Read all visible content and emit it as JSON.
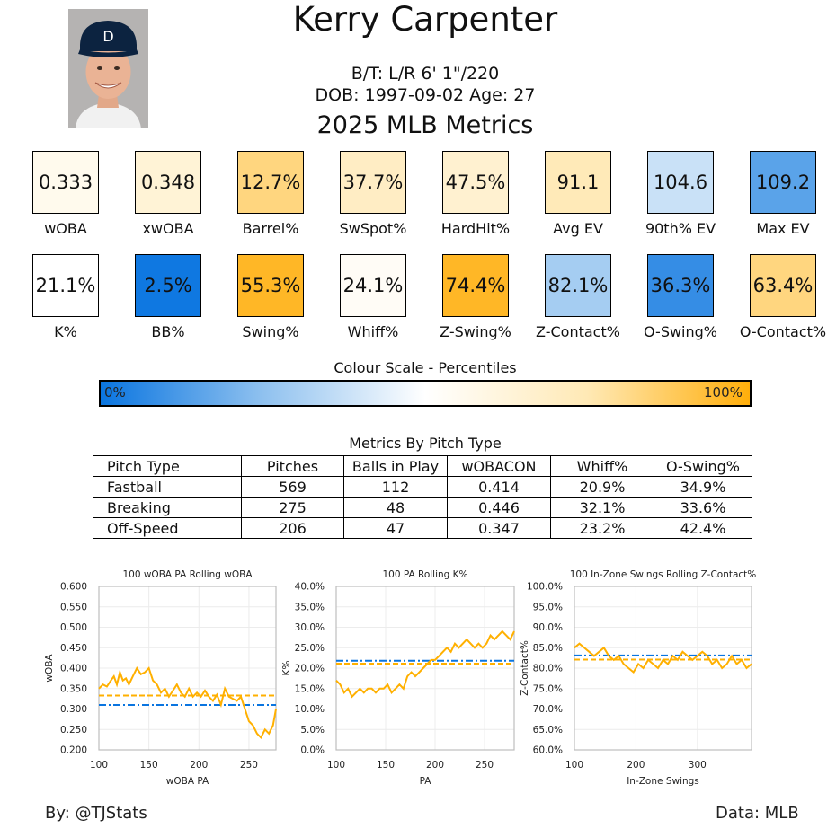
{
  "player": {
    "name": "Kerry Carpenter",
    "bt_line": "B/T: L/R    6' 1\"/220",
    "dob_line": "DOB: 1997-09-02    Age: 27",
    "season_title": "2025 MLB Metrics"
  },
  "tiles": [
    {
      "value": "0.333",
      "label": "wOBA",
      "pct": 0.56
    },
    {
      "value": "0.348",
      "label": "xwOBA",
      "pct": 0.64
    },
    {
      "value": "12.7%",
      "label": "Barrel%",
      "pct": 0.83
    },
    {
      "value": "37.7%",
      "label": "SwSpot%",
      "pct": 0.7
    },
    {
      "value": "47.5%",
      "label": "HardHit%",
      "pct": 0.66
    },
    {
      "value": "91.1",
      "label": "Avg EV",
      "pct": 0.74
    },
    {
      "value": "104.6",
      "label": "90th% EV",
      "pct": 0.38
    },
    {
      "value": "109.2",
      "label": "Max EV",
      "pct": 0.15
    },
    {
      "value": "21.1%",
      "label": "K%",
      "pct": 0.5
    },
    {
      "value": "2.5%",
      "label": "BB%",
      "pct": 0.01
    },
    {
      "value": "55.3%",
      "label": "Swing%",
      "pct": 0.96
    },
    {
      "value": "24.1%",
      "label": "Whiff%",
      "pct": 0.53
    },
    {
      "value": "74.4%",
      "label": "Z-Swing%",
      "pct": 0.96
    },
    {
      "value": "82.1%",
      "label": "Z-Contact%",
      "pct": 0.3
    },
    {
      "value": "36.3%",
      "label": "O-Swing%",
      "pct": 0.08
    },
    {
      "value": "63.4%",
      "label": "O-Contact%",
      "pct": 0.83
    }
  ],
  "colour_scale": {
    "title": "Colour Scale - Percentiles",
    "low": "0%",
    "high": "100%",
    "colors": [
      "#0a75e0",
      "#8fc1ef",
      "#ffffff",
      "#ffe9b5",
      "#ffae0b"
    ]
  },
  "pitch_table": {
    "title": "Metrics By Pitch Type",
    "headers": [
      "Pitch Type",
      "Pitches",
      "Balls in Play",
      "wOBACON",
      "Whiff%",
      "O-Swing%"
    ],
    "rows": [
      [
        "Fastball",
        "569",
        "112",
        "0.414",
        "20.9%",
        "34.9%"
      ],
      [
        "Breaking",
        "275",
        "48",
        "0.446",
        "32.1%",
        "33.6%"
      ],
      [
        "Off-Speed",
        "206",
        "47",
        "0.347",
        "23.2%",
        "42.4%"
      ]
    ]
  },
  "chart_data": [
    {
      "type": "line",
      "title": "100 wOBA PA Rolling wOBA",
      "xlabel": "wOBA PA",
      "ylabel": "wOBA",
      "xlim": [
        100,
        277
      ],
      "ylim": [
        0.2,
        0.6
      ],
      "xticks": [
        100,
        150,
        200,
        250
      ],
      "xtick_labels": [
        "100",
        "150",
        "200",
        "250"
      ],
      "yticks": [
        0.2,
        0.25,
        0.3,
        0.35,
        0.4,
        0.45,
        0.5,
        0.55,
        0.6
      ],
      "ytick_labels": [
        "0.200",
        "0.250",
        "0.300",
        "0.350",
        "0.400",
        "0.450",
        "0.500",
        "0.550",
        "0.600"
      ],
      "series": [
        {
          "color": "#ffb000",
          "x": [
            100,
            104,
            108,
            112,
            115,
            118,
            121,
            124,
            127,
            130,
            134,
            138,
            142,
            146,
            150,
            154,
            158,
            162,
            166,
            170,
            174,
            178,
            182,
            186,
            190,
            194,
            198,
            202,
            206,
            210,
            214,
            218,
            222,
            226,
            230,
            234,
            238,
            242,
            246,
            250,
            254,
            258,
            262,
            266,
            270,
            274,
            277
          ],
          "y": [
            0.35,
            0.36,
            0.355,
            0.37,
            0.38,
            0.36,
            0.39,
            0.37,
            0.375,
            0.36,
            0.38,
            0.4,
            0.385,
            0.39,
            0.4,
            0.37,
            0.36,
            0.34,
            0.35,
            0.33,
            0.345,
            0.36,
            0.34,
            0.33,
            0.35,
            0.33,
            0.34,
            0.33,
            0.345,
            0.33,
            0.32,
            0.335,
            0.31,
            0.35,
            0.33,
            0.325,
            0.32,
            0.33,
            0.3,
            0.27,
            0.26,
            0.24,
            0.23,
            0.25,
            0.24,
            0.26,
            0.3
          ]
        }
      ],
      "reference_lines": [
        {
          "value": 0.333,
          "color": "#ffb000",
          "style": "dashed"
        },
        {
          "value": 0.31,
          "color": "#0a75e0",
          "style": "dashdot"
        }
      ]
    },
    {
      "type": "line",
      "title": "100 PA Rolling K%",
      "xlabel": "PA",
      "ylabel": "K%",
      "xlim": [
        100,
        280
      ],
      "ylim": [
        0,
        0.4
      ],
      "xticks": [
        100,
        150,
        200,
        250
      ],
      "xtick_labels": [
        "100",
        "150",
        "200",
        "250"
      ],
      "yticks": [
        0,
        0.05,
        0.1,
        0.15,
        0.2,
        0.25,
        0.3,
        0.35,
        0.4
      ],
      "ytick_labels": [
        "0.0%",
        "5.0%",
        "10.0%",
        "15.0%",
        "20.0%",
        "25.0%",
        "30.0%",
        "35.0%",
        "40.0%"
      ],
      "series": [
        {
          "color": "#ffb000",
          "x": [
            100,
            104,
            108,
            112,
            116,
            120,
            124,
            128,
            132,
            136,
            140,
            144,
            148,
            152,
            156,
            160,
            164,
            168,
            172,
            176,
            180,
            184,
            188,
            192,
            196,
            200,
            204,
            208,
            212,
            216,
            220,
            224,
            228,
            232,
            236,
            240,
            244,
            248,
            252,
            256,
            260,
            264,
            268,
            272,
            276,
            280
          ],
          "y": [
            0.17,
            0.16,
            0.14,
            0.15,
            0.13,
            0.14,
            0.15,
            0.14,
            0.15,
            0.15,
            0.14,
            0.15,
            0.15,
            0.16,
            0.14,
            0.15,
            0.16,
            0.15,
            0.18,
            0.19,
            0.18,
            0.19,
            0.2,
            0.21,
            0.22,
            0.22,
            0.23,
            0.24,
            0.25,
            0.24,
            0.26,
            0.25,
            0.26,
            0.27,
            0.26,
            0.25,
            0.26,
            0.25,
            0.26,
            0.28,
            0.27,
            0.28,
            0.29,
            0.28,
            0.27,
            0.29
          ]
        }
      ],
      "reference_lines": [
        {
          "value": 0.211,
          "color": "#ffb000",
          "style": "dashed"
        },
        {
          "value": 0.218,
          "color": "#0a75e0",
          "style": "dashdot"
        }
      ]
    },
    {
      "type": "line",
      "title": "100 In-Zone Swings Rolling Z-Contact%",
      "xlabel": "In-Zone Swings",
      "ylabel": "Z-Contact%",
      "xlim": [
        100,
        388
      ],
      "ylim": [
        0.6,
        1.0
      ],
      "xticks": [
        100,
        200,
        300
      ],
      "xtick_labels": [
        "100",
        "200",
        "300"
      ],
      "yticks": [
        0.6,
        0.65,
        0.7,
        0.75,
        0.8,
        0.85,
        0.9,
        0.95,
        1.0
      ],
      "ytick_labels": [
        "60.0%",
        "65.0%",
        "70.0%",
        "75.0%",
        "80.0%",
        "85.0%",
        "90.0%",
        "95.0%",
        "100.0%"
      ],
      "series": [
        {
          "color": "#ffb000",
          "x": [
            100,
            108,
            116,
            124,
            132,
            140,
            148,
            156,
            164,
            172,
            180,
            188,
            196,
            204,
            212,
            220,
            228,
            236,
            244,
            252,
            260,
            268,
            276,
            284,
            292,
            300,
            308,
            316,
            324,
            332,
            340,
            348,
            356,
            364,
            372,
            380,
            388
          ],
          "y": [
            0.85,
            0.86,
            0.85,
            0.84,
            0.83,
            0.84,
            0.85,
            0.83,
            0.82,
            0.83,
            0.81,
            0.8,
            0.79,
            0.81,
            0.8,
            0.82,
            0.81,
            0.8,
            0.82,
            0.81,
            0.83,
            0.82,
            0.84,
            0.83,
            0.82,
            0.83,
            0.84,
            0.83,
            0.81,
            0.82,
            0.8,
            0.81,
            0.83,
            0.81,
            0.82,
            0.8,
            0.81
          ]
        }
      ],
      "reference_lines": [
        {
          "value": 0.821,
          "color": "#ffb000",
          "style": "dashed"
        },
        {
          "value": 0.831,
          "color": "#0a75e0",
          "style": "dashdot"
        }
      ]
    }
  ],
  "footer": {
    "left": "By: @TJStats",
    "right": "Data: MLB"
  }
}
